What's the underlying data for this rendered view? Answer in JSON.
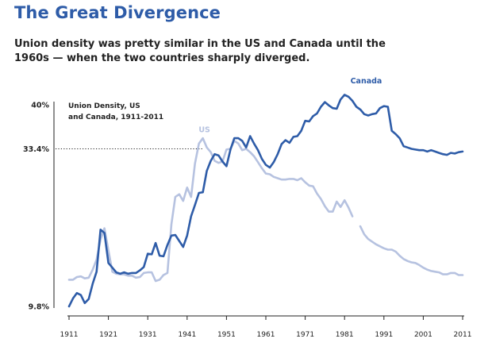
{
  "title": "The Great Divergence",
  "subtitle": "Union density was pretty similar in the US and Canada until the 1960s — when the two countries sharply diverged.",
  "chart_data": {
    "type": "line",
    "annotation": [
      "Union Density, US",
      "and Canada, 1911-2011"
    ],
    "y_tick_labels": [
      "40%",
      "33.4%",
      "9.8%"
    ],
    "y_ticks": [
      40,
      33.4,
      9.8
    ],
    "ylim": [
      9.8,
      40
    ],
    "x_tick_labels": [
      "1911",
      "1921",
      "1931",
      "1941",
      "1951",
      "1961",
      "1971",
      "1981",
      "1991",
      "2001",
      "2011"
    ],
    "xlim": [
      1911,
      2011
    ],
    "reference_line": {
      "y": 33.4,
      "style": "dotted"
    },
    "grid": false,
    "series": [
      {
        "name": "Canada",
        "color": "#2e5ca8",
        "points": [
          [
            1911,
            9.8
          ],
          [
            1912,
            11.0
          ],
          [
            1913,
            11.8
          ],
          [
            1914,
            11.5
          ],
          [
            1915,
            10.3
          ],
          [
            1916,
            10.9
          ],
          [
            1917,
            13.2
          ],
          [
            1918,
            15.0
          ],
          [
            1919,
            21.3
          ],
          [
            1920,
            20.8
          ],
          [
            1921,
            16.3
          ],
          [
            1922,
            15.6
          ],
          [
            1923,
            14.9
          ],
          [
            1924,
            14.7
          ],
          [
            1925,
            14.9
          ],
          [
            1926,
            14.7
          ],
          [
            1927,
            14.8
          ],
          [
            1928,
            14.8
          ],
          [
            1929,
            15.2
          ],
          [
            1930,
            15.7
          ],
          [
            1931,
            17.7
          ],
          [
            1932,
            17.6
          ],
          [
            1933,
            19.3
          ],
          [
            1934,
            17.4
          ],
          [
            1935,
            17.3
          ],
          [
            1936,
            19.0
          ],
          [
            1937,
            20.4
          ],
          [
            1938,
            20.5
          ],
          [
            1939,
            19.6
          ],
          [
            1940,
            18.7
          ],
          [
            1941,
            20.4
          ],
          [
            1942,
            23.3
          ],
          [
            1943,
            25.0
          ],
          [
            1944,
            26.8
          ],
          [
            1945,
            26.9
          ],
          [
            1946,
            30.1
          ],
          [
            1947,
            31.6
          ],
          [
            1948,
            32.6
          ],
          [
            1949,
            32.4
          ],
          [
            1950,
            31.5
          ],
          [
            1951,
            30.8
          ],
          [
            1952,
            33.3
          ],
          [
            1953,
            35.0
          ],
          [
            1954,
            35.0
          ],
          [
            1955,
            34.6
          ],
          [
            1956,
            33.6
          ],
          [
            1957,
            35.3
          ],
          [
            1958,
            34.2
          ],
          [
            1959,
            33.2
          ],
          [
            1960,
            31.9
          ],
          [
            1961,
            31.0
          ],
          [
            1962,
            30.6
          ],
          [
            1963,
            31.4
          ],
          [
            1964,
            32.6
          ],
          [
            1965,
            34.1
          ],
          [
            1966,
            34.7
          ],
          [
            1967,
            34.3
          ],
          [
            1968,
            35.2
          ],
          [
            1969,
            35.3
          ],
          [
            1970,
            36.1
          ],
          [
            1971,
            37.6
          ],
          [
            1972,
            37.5
          ],
          [
            1973,
            38.3
          ],
          [
            1974,
            38.7
          ],
          [
            1975,
            39.7
          ],
          [
            1976,
            40.4
          ],
          [
            1977,
            39.9
          ],
          [
            1978,
            39.5
          ],
          [
            1979,
            39.4
          ],
          [
            1980,
            40.8
          ],
          [
            1981,
            41.5
          ],
          [
            1982,
            41.2
          ],
          [
            1983,
            40.6
          ],
          [
            1984,
            39.7
          ],
          [
            1985,
            39.3
          ],
          [
            1986,
            38.6
          ],
          [
            1987,
            38.4
          ],
          [
            1988,
            38.6
          ],
          [
            1989,
            38.7
          ],
          [
            1990,
            39.5
          ],
          [
            1991,
            39.8
          ],
          [
            1992,
            39.7
          ],
          [
            1993,
            36.1
          ],
          [
            1994,
            35.6
          ],
          [
            1995,
            35.0
          ],
          [
            1996,
            33.8
          ],
          [
            1997,
            33.6
          ],
          [
            1998,
            33.4
          ],
          [
            1999,
            33.3
          ],
          [
            2000,
            33.2
          ],
          [
            2001,
            33.2
          ],
          [
            2002,
            33.0
          ],
          [
            2003,
            33.2
          ],
          [
            2004,
            33.0
          ],
          [
            2005,
            32.8
          ],
          [
            2006,
            32.6
          ],
          [
            2007,
            32.5
          ],
          [
            2008,
            32.8
          ],
          [
            2009,
            32.7
          ],
          [
            2010,
            32.9
          ],
          [
            2011,
            33.0
          ]
        ]
      },
      {
        "name": "US",
        "color": "#b6c2e0",
        "segments": [
          [
            [
              1911,
              13.8
            ],
            [
              1912,
              13.8
            ],
            [
              1913,
              14.2
            ],
            [
              1914,
              14.3
            ],
            [
              1915,
              14.0
            ],
            [
              1916,
              14.1
            ],
            [
              1917,
              15.3
            ],
            [
              1918,
              16.8
            ],
            [
              1919,
              19.8
            ],
            [
              1920,
              21.5
            ],
            [
              1921,
              18.2
            ],
            [
              1922,
              15.0
            ],
            [
              1923,
              14.7
            ],
            [
              1924,
              14.6
            ],
            [
              1925,
              14.6
            ],
            [
              1926,
              14.4
            ],
            [
              1927,
              14.4
            ],
            [
              1928,
              14.1
            ],
            [
              1929,
              14.2
            ],
            [
              1930,
              14.8
            ],
            [
              1931,
              14.9
            ],
            [
              1932,
              14.9
            ],
            [
              1933,
              13.6
            ],
            [
              1934,
              13.8
            ],
            [
              1935,
              14.5
            ],
            [
              1936,
              14.8
            ],
            [
              1937,
              22.1
            ],
            [
              1938,
              26.2
            ],
            [
              1939,
              26.6
            ],
            [
              1940,
              25.6
            ],
            [
              1941,
              27.6
            ],
            [
              1942,
              26.2
            ],
            [
              1943,
              31.2
            ],
            [
              1944,
              34.2
            ],
            [
              1945,
              35.0
            ],
            [
              1946,
              33.6
            ],
            [
              1947,
              32.9
            ],
            [
              1948,
              31.6
            ],
            [
              1949,
              31.3
            ],
            [
              1950,
              31.5
            ],
            [
              1951,
              33.3
            ],
            [
              1952,
              33.4
            ],
            [
              1953,
              34.6
            ],
            [
              1954,
              34.2
            ],
            [
              1955,
              33.2
            ],
            [
              1956,
              33.4
            ],
            [
              1957,
              32.9
            ],
            [
              1958,
              32.3
            ],
            [
              1959,
              31.4
            ],
            [
              1960,
              30.5
            ],
            [
              1961,
              29.7
            ],
            [
              1962,
              29.6
            ],
            [
              1963,
              29.2
            ],
            [
              1964,
              29.0
            ],
            [
              1965,
              28.8
            ],
            [
              1966,
              28.8
            ],
            [
              1967,
              28.9
            ],
            [
              1968,
              28.9
            ],
            [
              1969,
              28.7
            ],
            [
              1970,
              29.0
            ],
            [
              1971,
              28.4
            ],
            [
              1972,
              27.9
            ],
            [
              1973,
              27.8
            ],
            [
              1974,
              26.7
            ],
            [
              1975,
              25.9
            ],
            [
              1976,
              24.8
            ],
            [
              1977,
              24.0
            ],
            [
              1978,
              24.0
            ],
            [
              1979,
              25.5
            ],
            [
              1980,
              24.7
            ],
            [
              1981,
              25.7
            ],
            [
              1982,
              24.6
            ],
            [
              1983,
              23.3
            ]
          ],
          [
            [
              1985,
              21.8
            ],
            [
              1986,
              20.6
            ],
            [
              1987,
              19.9
            ],
            [
              1988,
              19.5
            ],
            [
              1989,
              19.1
            ],
            [
              1990,
              18.8
            ],
            [
              1991,
              18.5
            ],
            [
              1992,
              18.3
            ],
            [
              1993,
              18.3
            ],
            [
              1994,
              18.0
            ],
            [
              1995,
              17.4
            ],
            [
              1996,
              16.9
            ],
            [
              1997,
              16.6
            ],
            [
              1998,
              16.4
            ],
            [
              1999,
              16.3
            ],
            [
              2000,
              16.0
            ],
            [
              2001,
              15.6
            ],
            [
              2002,
              15.3
            ],
            [
              2003,
              15.1
            ],
            [
              2004,
              15.0
            ],
            [
              2005,
              14.9
            ],
            [
              2006,
              14.6
            ],
            [
              2007,
              14.6
            ],
            [
              2008,
              14.8
            ],
            [
              2009,
              14.8
            ],
            [
              2010,
              14.5
            ],
            [
              2011,
              14.5
            ]
          ]
        ]
      }
    ]
  }
}
